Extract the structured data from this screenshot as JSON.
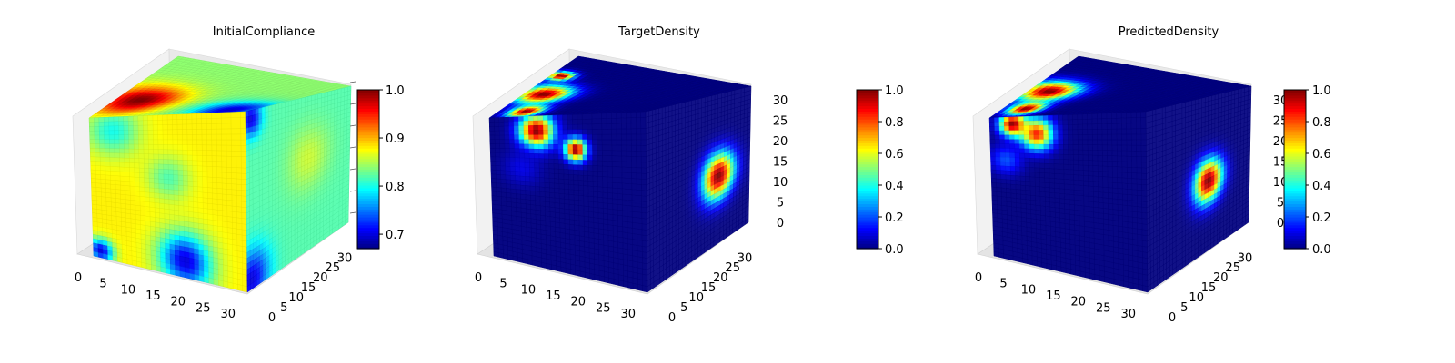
{
  "chart_data": [
    {
      "type": "heatmap",
      "render": "3d-voxel-cube",
      "title": "InitialCompliance",
      "xlabel": "",
      "ylabel": "",
      "zlabel": "",
      "x_ticks": [
        "0",
        "5",
        "10",
        "15",
        "20",
        "25",
        "30"
      ],
      "y_ticks": [
        "0",
        "5",
        "10",
        "15",
        "20",
        "25",
        "30"
      ],
      "z_ticks": [],
      "grid_size": [
        32,
        32,
        32
      ],
      "colormap": "jet",
      "colorbar": {
        "ticks": [
          "0.7",
          "0.8",
          "0.9",
          "1.0"
        ],
        "tick_values": [
          0.7,
          0.8,
          0.9,
          1.0
        ],
        "vmin": 0.67,
        "vmax": 1.0
      },
      "visible_faces": {
        "top": {
          "base": 0.84,
          "blobs": [
            {
              "u": 0.15,
              "v": 0.3,
              "r": 0.35,
              "value": 1.0
            },
            {
              "u": 0.85,
              "v": 0.1,
              "r": 0.35,
              "value": 0.7
            }
          ]
        },
        "front": {
          "base": 0.88,
          "blobs": [
            {
              "u": 0.05,
              "v": 0.95,
              "r": 0.12,
              "value": 0.7
            },
            {
              "u": 0.6,
              "v": 0.9,
              "r": 0.25,
              "value": 0.7
            },
            {
              "u": 0.15,
              "v": 0.1,
              "r": 0.25,
              "value": 0.8
            },
            {
              "u": 0.5,
              "v": 0.4,
              "r": 0.2,
              "value": 0.82
            }
          ]
        },
        "side": {
          "base": 0.82,
          "blobs": [
            {
              "u": 0.05,
              "v": 0.05,
              "r": 0.15,
              "value": 0.7
            },
            {
              "u": 0.05,
              "v": 0.95,
              "r": 0.25,
              "value": 0.7
            },
            {
              "u": 0.6,
              "v": 0.4,
              "r": 0.3,
              "value": 0.86
            }
          ]
        }
      }
    },
    {
      "type": "heatmap",
      "render": "3d-voxel-cube",
      "title": "TargetDensity",
      "xlabel": "",
      "ylabel": "",
      "zlabel": "",
      "x_ticks": [
        "0",
        "5",
        "10",
        "15",
        "20",
        "25",
        "30"
      ],
      "y_ticks": [
        "0",
        "5",
        "10",
        "15",
        "20",
        "25",
        "30"
      ],
      "z_ticks": [
        "0",
        "5",
        "10",
        "15",
        "20",
        "25",
        "30"
      ],
      "grid_size": [
        32,
        32,
        32
      ],
      "colormap": "jet",
      "colorbar": {
        "ticks": [
          "0.0",
          "0.2",
          "0.4",
          "0.6",
          "0.8",
          "1.0"
        ],
        "tick_values": [
          0.0,
          0.2,
          0.4,
          0.6,
          0.8,
          1.0
        ],
        "vmin": 0.0,
        "vmax": 1.0
      },
      "visible_faces": {
        "top": {
          "base": 0.0,
          "blobs": [
            {
              "u": 0.12,
              "v": 0.4,
              "r": 0.22,
              "value": 1.0
            },
            {
              "u": 0.18,
              "v": 0.1,
              "r": 0.15,
              "value": 1.0
            },
            {
              "u": 0.06,
              "v": 0.7,
              "r": 0.1,
              "value": 1.0
            }
          ]
        },
        "front": {
          "base": 0.0,
          "blobs": [
            {
              "u": 0.3,
              "v": 0.1,
              "r": 0.16,
              "value": 1.0
            },
            {
              "u": 0.55,
              "v": 0.22,
              "r": 0.1,
              "value": 1.0
            },
            {
              "u": 0.2,
              "v": 0.35,
              "r": 0.18,
              "value": 0.1
            }
          ]
        },
        "side": {
          "base": 0.0,
          "blobs": [
            {
              "u": 0.7,
              "v": 0.55,
              "r": 0.22,
              "value": 1.0
            }
          ]
        }
      }
    },
    {
      "type": "heatmap",
      "render": "3d-voxel-cube",
      "title": "PredictedDensity",
      "xlabel": "",
      "ylabel": "",
      "zlabel": "",
      "x_ticks": [
        "0",
        "5",
        "10",
        "15",
        "20",
        "25",
        "30"
      ],
      "y_ticks": [
        "0",
        "5",
        "10",
        "15",
        "20",
        "25",
        "30"
      ],
      "z_ticks": [
        "0",
        "5",
        "10",
        "15",
        "20",
        "25",
        "30"
      ],
      "grid_size": [
        32,
        32,
        32
      ],
      "colormap": "jet",
      "colorbar": {
        "ticks": [
          "0.0",
          "0.2",
          "0.4",
          "0.6",
          "0.8",
          "1.0"
        ],
        "tick_values": [
          0.0,
          0.2,
          0.4,
          0.6,
          0.8,
          1.0
        ],
        "vmin": 0.0,
        "vmax": 1.0
      },
      "visible_faces": {
        "top": {
          "base": 0.0,
          "blobs": [
            {
              "u": 0.12,
              "v": 0.45,
              "r": 0.24,
              "value": 1.0
            },
            {
              "u": 0.15,
              "v": 0.15,
              "r": 0.15,
              "value": 1.0
            }
          ]
        },
        "front": {
          "base": 0.0,
          "blobs": [
            {
              "u": 0.3,
              "v": 0.12,
              "r": 0.15,
              "value": 0.85
            },
            {
              "u": 0.15,
              "v": 0.05,
              "r": 0.12,
              "value": 1.0
            },
            {
              "u": 0.1,
              "v": 0.3,
              "r": 0.15,
              "value": 0.2
            }
          ]
        },
        "side": {
          "base": 0.0,
          "blobs": [
            {
              "u": 0.6,
              "v": 0.55,
              "r": 0.2,
              "value": 1.0
            }
          ]
        }
      }
    }
  ]
}
